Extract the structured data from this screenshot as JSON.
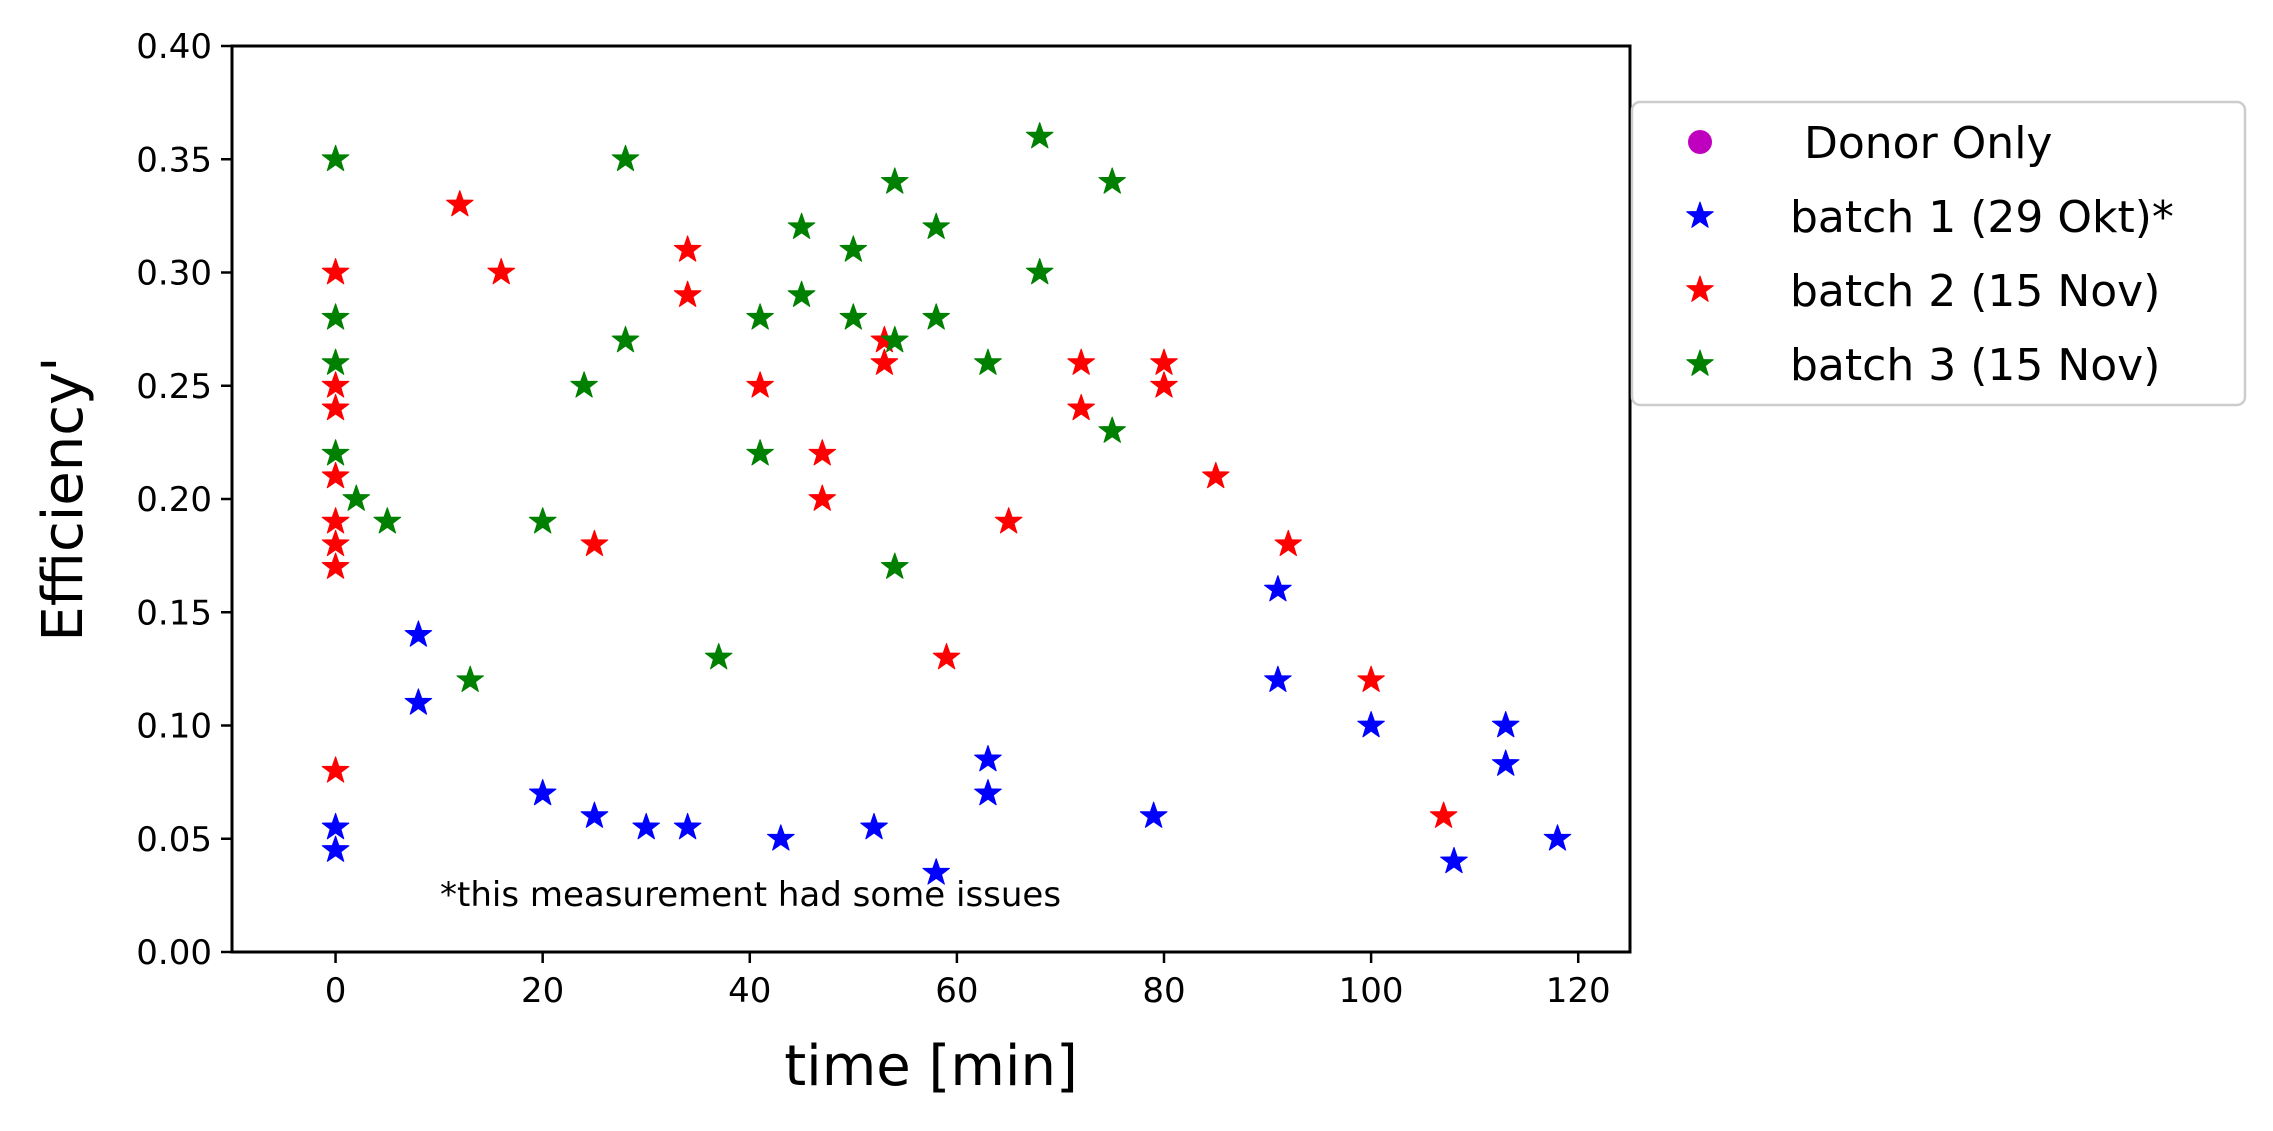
{
  "chart_data": {
    "type": "scatter",
    "title": "",
    "xlabel": "time [min]",
    "ylabel": "Efficiency'",
    "xlim": [
      -10,
      125
    ],
    "ylim": [
      0,
      0.4
    ],
    "xticks": [
      0,
      20,
      40,
      60,
      80,
      100,
      120
    ],
    "xtick_labels": [
      "0",
      "20",
      "40",
      "60",
      "80",
      "100",
      "120"
    ],
    "yticks": [
      0,
      0.05,
      0.1,
      0.15,
      0.2,
      0.25,
      0.3,
      0.35,
      0.4
    ],
    "ytick_labels": [
      "0.00",
      "0.05",
      "0.10",
      "0.15",
      "0.20",
      "0.25",
      "0.30",
      "0.35",
      "0.40"
    ],
    "grid": false,
    "legend_position": "outside-right",
    "annotation": "*this measurement had some issues",
    "series": [
      {
        "name": " Donor Only",
        "marker": "circle",
        "color": "#bf00bf",
        "points": []
      },
      {
        "name": "batch 1 (29 Okt)*",
        "marker": "star",
        "color": "#0000ff",
        "points": [
          [
            0,
            0.055
          ],
          [
            0,
            0.045
          ],
          [
            8,
            0.14
          ],
          [
            8,
            0.11
          ],
          [
            20,
            0.07
          ],
          [
            25,
            0.06
          ],
          [
            30,
            0.055
          ],
          [
            34,
            0.055
          ],
          [
            43,
            0.05
          ],
          [
            52,
            0.055
          ],
          [
            58,
            0.035
          ],
          [
            63,
            0.085
          ],
          [
            63,
            0.07
          ],
          [
            79,
            0.06
          ],
          [
            91,
            0.16
          ],
          [
            91,
            0.12
          ],
          [
            100,
            0.1
          ],
          [
            108,
            0.04
          ],
          [
            113,
            0.1
          ],
          [
            113,
            0.083
          ],
          [
            118,
            0.05
          ]
        ]
      },
      {
        "name": "batch 2 (15 Nov)",
        "marker": "star",
        "color": "#ff0000",
        "points": [
          [
            0,
            0.3
          ],
          [
            0,
            0.25
          ],
          [
            0,
            0.24
          ],
          [
            0,
            0.21
          ],
          [
            0,
            0.19
          ],
          [
            0,
            0.18
          ],
          [
            0,
            0.17
          ],
          [
            0,
            0.08
          ],
          [
            12,
            0.33
          ],
          [
            16,
            0.3
          ],
          [
            25,
            0.18
          ],
          [
            34,
            0.31
          ],
          [
            34,
            0.29
          ],
          [
            41,
            0.25
          ],
          [
            47,
            0.22
          ],
          [
            47,
            0.2
          ],
          [
            53,
            0.27
          ],
          [
            53,
            0.26
          ],
          [
            59,
            0.13
          ],
          [
            65,
            0.19
          ],
          [
            72,
            0.26
          ],
          [
            72,
            0.24
          ],
          [
            80,
            0.26
          ],
          [
            80,
            0.25
          ],
          [
            85,
            0.21
          ],
          [
            92,
            0.18
          ],
          [
            100,
            0.12
          ],
          [
            107,
            0.06
          ]
        ]
      },
      {
        "name": "batch 3 (15 Nov)",
        "marker": "star",
        "color": "#008000",
        "points": [
          [
            0,
            0.35
          ],
          [
            0,
            0.28
          ],
          [
            0,
            0.26
          ],
          [
            0,
            0.22
          ],
          [
            2,
            0.2
          ],
          [
            5,
            0.19
          ],
          [
            13,
            0.12
          ],
          [
            20,
            0.19
          ],
          [
            24,
            0.25
          ],
          [
            28,
            0.35
          ],
          [
            28,
            0.27
          ],
          [
            37,
            0.13
          ],
          [
            41,
            0.28
          ],
          [
            41,
            0.22
          ],
          [
            45,
            0.32
          ],
          [
            45,
            0.29
          ],
          [
            50,
            0.31
          ],
          [
            50,
            0.28
          ],
          [
            54,
            0.34
          ],
          [
            54,
            0.27
          ],
          [
            54,
            0.17
          ],
          [
            58,
            0.32
          ],
          [
            58,
            0.28
          ],
          [
            63,
            0.26
          ],
          [
            68,
            0.36
          ],
          [
            68,
            0.3
          ],
          [
            75,
            0.34
          ],
          [
            75,
            0.23
          ]
        ]
      }
    ]
  }
}
